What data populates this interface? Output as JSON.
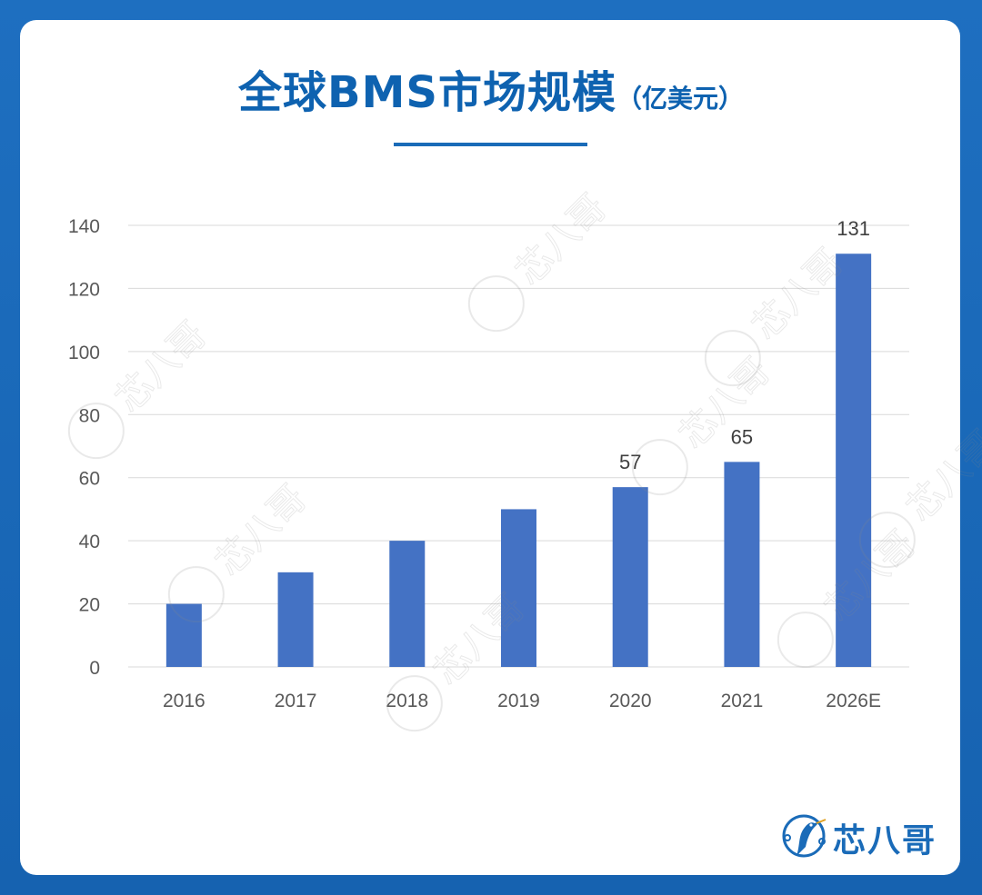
{
  "header": {
    "title": "全球BMS市场规模",
    "unit": "（亿美元）"
  },
  "brand": {
    "logo_text": "芯八哥",
    "watermark_text": "芯八哥"
  },
  "colors": {
    "bar": "#4472c4",
    "title": "#0e62b0",
    "frame": "#1a68b8",
    "grid": "#d9d9d9",
    "axis_text": "#595959"
  },
  "chart_data": {
    "type": "bar",
    "categories": [
      "2016",
      "2017",
      "2018",
      "2019",
      "2020",
      "2021",
      "2026E"
    ],
    "values": [
      20,
      30,
      40,
      50,
      57,
      65,
      131
    ],
    "data_labels": [
      "",
      "",
      "",
      "",
      "57",
      "65",
      "131"
    ],
    "title": "全球BMS市场规模（亿美元）",
    "xlabel": "",
    "ylabel": "",
    "ylim": [
      0,
      140
    ],
    "yticks": [
      0,
      20,
      40,
      60,
      80,
      100,
      120,
      140
    ],
    "grid": true,
    "legend": "none"
  }
}
